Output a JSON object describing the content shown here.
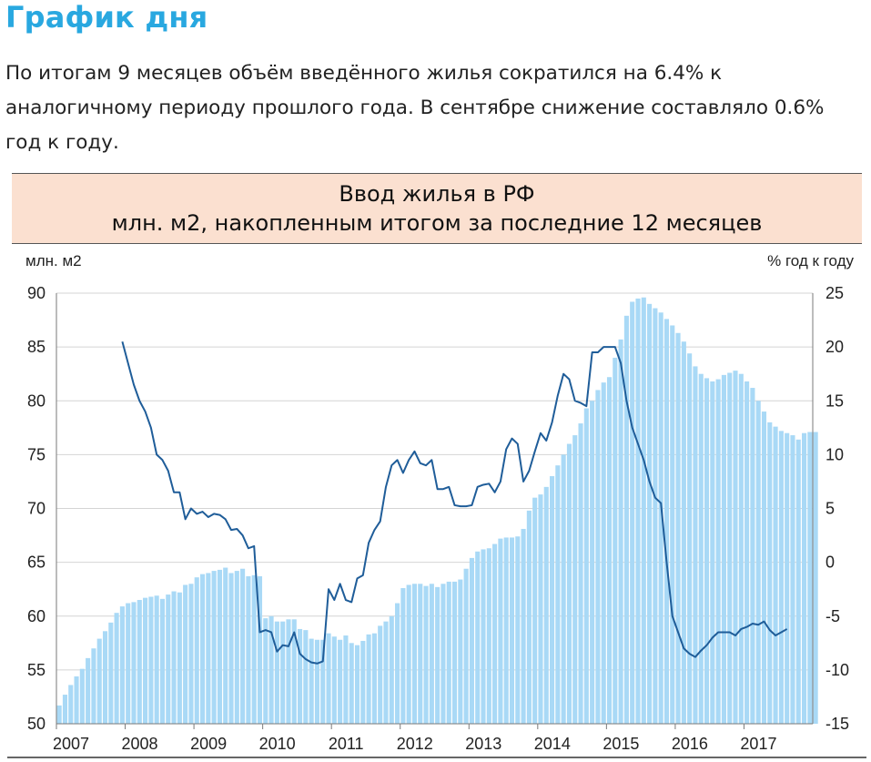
{
  "page": {
    "headline": "График дня",
    "lead": "По итогам 9 месяцев объём введённого жилья сократился на 6.4% к аналогичному периоду прошлого года. В сентябре снижение составляло 0.6% год к году."
  },
  "chart_data": {
    "type": "bar",
    "title": "Ввод жилья в РФ",
    "subtitle": "млн. м2, накопленным итогом за последние 12 месяцев",
    "ylabel_left": "млн. м2",
    "ylabel_right": "% год к году",
    "x_start": 2007,
    "x_ticks": [
      "2007",
      "2008",
      "2009",
      "2010",
      "2011",
      "2012",
      "2013",
      "2014",
      "2015",
      "2016",
      "2017"
    ],
    "y_left_range": [
      50,
      90
    ],
    "y_left_ticks": [
      50,
      55,
      60,
      65,
      70,
      75,
      80,
      85,
      90
    ],
    "y_right_range": [
      -15,
      25
    ],
    "y_right_ticks": [
      -15,
      -10,
      -5,
      0,
      5,
      10,
      15,
      20,
      25
    ],
    "grid": true,
    "colors": {
      "bars": "#a9d9f6",
      "line": "#1f5d99",
      "grid": "#d4d4d4",
      "headline": "#29a8e0",
      "title_band": "#fbe0d0"
    },
    "series": [
      {
        "axis": "left",
        "values": [
          51.7,
          52.7,
          53.6,
          54.4,
          55.1,
          56.1,
          57.0,
          57.9,
          58.6,
          59.4,
          60.3,
          60.9,
          61.2,
          61.3,
          61.5,
          61.7,
          61.8,
          61.9,
          61.6,
          62.0,
          62.3,
          62.2,
          62.9,
          63.0,
          63.6,
          63.9,
          64.0,
          64.2,
          64.3,
          64.5,
          64.0,
          64.2,
          64.4,
          63.7,
          63.8,
          63.7,
          59.8,
          60.0,
          59.5,
          59.5,
          59.7,
          59.7,
          58.8,
          58.7,
          57.9,
          57.8,
          57.8,
          58.4,
          58.1,
          57.8,
          58.2,
          57.5,
          57.3,
          57.7,
          58.3,
          58.4,
          59.1,
          59.5,
          60.0,
          61.2,
          62.6,
          62.9,
          63.0,
          63.0,
          62.8,
          63.0,
          62.7,
          63.0,
          63.2,
          63.2,
          63.4,
          64.4,
          65.4,
          66.0,
          66.2,
          66.3,
          66.7,
          67.2,
          67.3,
          67.3,
          67.4,
          68.1,
          69.8,
          71.0,
          71.3,
          72.0,
          73.0,
          74.0,
          75.0,
          76.0,
          76.8,
          77.9,
          79.3,
          80.0,
          81.0,
          81.7,
          82.2,
          84.0,
          85.7,
          87.9,
          89.2,
          89.5,
          89.6,
          89.0,
          88.6,
          88.2,
          87.6,
          87.0,
          86.3,
          85.5,
          84.4,
          83.2,
          82.5,
          82.1,
          81.8,
          82.0,
          82.4,
          82.6,
          82.8,
          82.5,
          81.8,
          81.2,
          80.0,
          79.0,
          78.0,
          77.6,
          77.2,
          77.0,
          76.8,
          76.4,
          77.0,
          77.1,
          77.1
        ]
      },
      {
        "axis": "right",
        "x_start_index": 11,
        "values": [
          20.5,
          18.5,
          16.5,
          15.0,
          14.0,
          12.5,
          10.0,
          9.5,
          8.5,
          6.5,
          6.5,
          4.0,
          5.0,
          4.5,
          4.7,
          4.2,
          4.5,
          4.4,
          4.0,
          3.0,
          3.1,
          2.5,
          1.3,
          1.5,
          -6.5,
          -6.3,
          -6.5,
          -8.3,
          -7.7,
          -7.8,
          -6.5,
          -8.5,
          -9.0,
          -9.3,
          -9.4,
          -9.2,
          -2.5,
          -3.5,
          -2.0,
          -3.5,
          -3.7,
          -1.5,
          -1.2,
          1.8,
          3.0,
          3.8,
          7.0,
          9.0,
          9.5,
          8.3,
          9.5,
          10.3,
          9.2,
          9.0,
          9.5,
          6.8,
          6.8,
          7.0,
          5.3,
          5.2,
          5.2,
          5.3,
          7.0,
          7.2,
          7.3,
          6.5,
          7.5,
          10.5,
          11.5,
          11.0,
          7.5,
          8.5,
          10.3,
          12.0,
          11.3,
          13.0,
          15.5,
          17.5,
          17.0,
          15.0,
          14.8,
          14.5,
          19.5,
          19.5,
          20.0,
          20.0,
          20.0,
          18.5,
          15.0,
          12.5,
          11.0,
          9.5,
          7.5,
          6.0,
          5.5,
          0.0,
          -5.0,
          -6.5,
          -8.0,
          -8.5,
          -8.8,
          -8.2,
          -7.7,
          -7.0,
          -6.5,
          -6.5,
          -6.5,
          -6.8,
          -6.2,
          -6.0,
          -5.7,
          -5.8,
          -5.5,
          -6.3,
          -6.8,
          -6.5,
          -6.2
        ]
      }
    ]
  }
}
